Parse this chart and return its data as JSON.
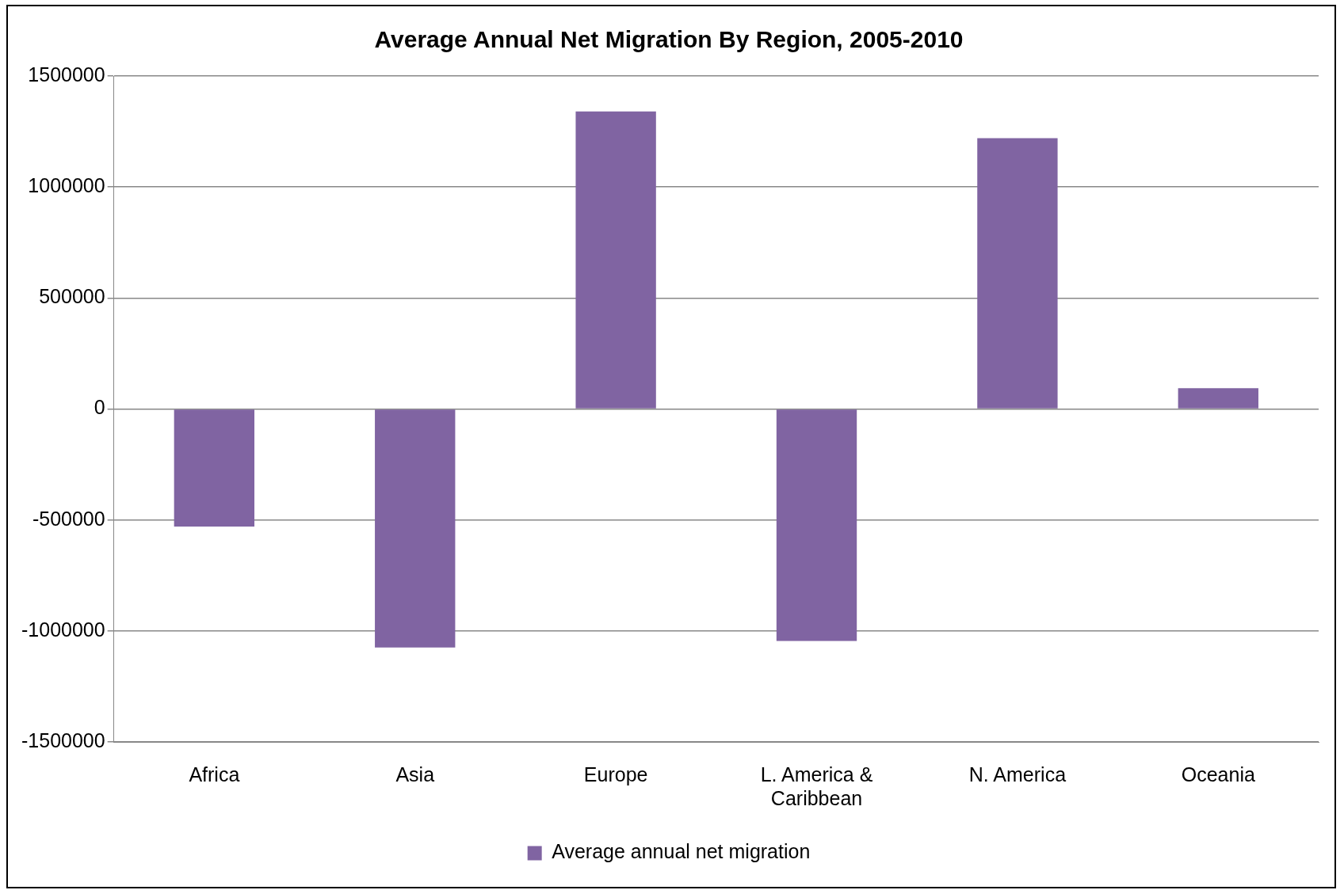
{
  "chart_data": {
    "type": "bar",
    "title": "Average Annual Net Migration By Region, 2005-2010",
    "categories": [
      "Africa",
      "Asia",
      "Europe",
      "L. America & Caribbean",
      "N. America",
      "Oceania"
    ],
    "series": [
      {
        "name": "Average annual net migration",
        "color": "#8064a2",
        "values": [
          -530000,
          -1075000,
          1340000,
          -1045000,
          1220000,
          94000
        ]
      }
    ],
    "ylim": [
      -1500000,
      1500000
    ],
    "yticks": [
      -1500000,
      -1000000,
      -500000,
      0,
      500000,
      1000000,
      1500000
    ],
    "grid": "y",
    "legend": "bottom"
  }
}
